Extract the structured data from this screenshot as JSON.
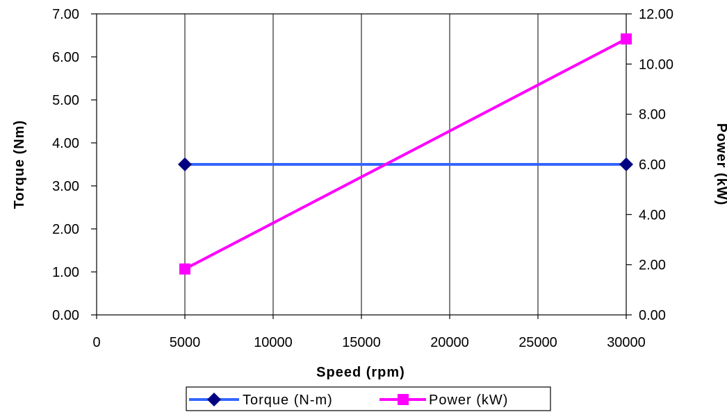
{
  "chart_data": {
    "type": "line",
    "xlabel": "Speed (rpm)",
    "ylabel_left": "Torque (Nm)",
    "ylabel_right": "Power (kW)",
    "xlim": [
      0,
      30000
    ],
    "ylim_left": [
      0,
      7
    ],
    "ylim_right": [
      0,
      12
    ],
    "x_ticks": [
      "0",
      "5000",
      "10000",
      "15000",
      "20000",
      "25000",
      "30000"
    ],
    "y_left_ticks": [
      "0.00",
      "1.00",
      "2.00",
      "3.00",
      "4.00",
      "5.00",
      "6.00",
      "7.00"
    ],
    "y_right_ticks": [
      "0.00",
      "2.00",
      "4.00",
      "6.00",
      "8.00",
      "10.00",
      "12.00"
    ],
    "grid": true,
    "legend_position": "bottom",
    "series": [
      {
        "name": "Torque (N-m)",
        "axis": "left",
        "x": [
          5000,
          30000
        ],
        "values": [
          3.5,
          3.5
        ],
        "color": "#3366ff",
        "marker": "diamond",
        "marker_color": "#000080"
      },
      {
        "name": "Power (kW)",
        "axis": "right",
        "x": [
          5000,
          30000
        ],
        "values": [
          1.83,
          11.0
        ],
        "color": "#ff00ff",
        "marker": "square",
        "marker_color": "#ff00ff"
      }
    ]
  }
}
